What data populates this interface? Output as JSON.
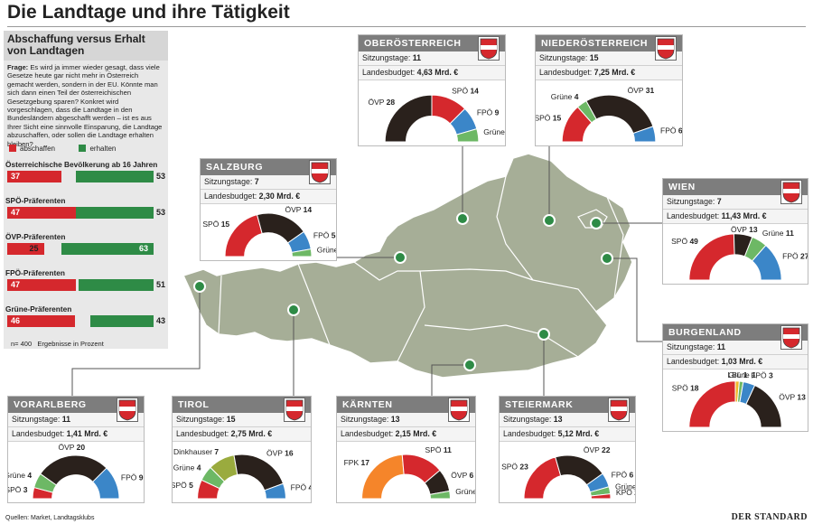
{
  "title": "Die Landtage und ihre Tätigkeit",
  "colors": {
    "SPÖ": "#d5282d",
    "ÖVP": "#2a211c",
    "FPÖ": "#3b86c8",
    "Grüne": "#6db865",
    "FPK": "#f5852a",
    "KPÖ": "#d5282d",
    "LBL": "#f0b82a",
    "Liste Dinkhauser": "#9aab3e",
    "abschaffen": "#d5282d",
    "erhalten": "#2e8b46",
    "map": "#a6ae97"
  },
  "survey": {
    "title": "Abschaffung versus Erhalt von Landtagen",
    "question_label": "Frage:",
    "question": "Es wird ja immer wieder gesagt, dass viele Gesetze heute gar nicht mehr in Österreich gemacht werden, sondern in der EU. Könnte man sich dann einen Teil der österreichischen Gesetzgebung sparen? Konkret wird vorgeschlagen, dass die Landtage in den Bundesländern abgeschafft werden – ist es aus Ihrer Sicht eine sinnvolle Einsparung, die Landtage abzuschaffen, oder sollen die Landtage erhalten bleiben?",
    "legend_abschaffen": "abschaffen",
    "legend_erhalten": "erhalten",
    "footer_n": "n= 400",
    "footer_note": "Ergebnisse in Prozent"
  },
  "chart_data": [
    {
      "type": "bar",
      "title": "Abschaffung versus Erhalt von Landtagen",
      "categories": [
        "Österreichische Bevölkerung ab 16 Jahren",
        "SPÖ-Präferenten",
        "ÖVP-Präferenten",
        "FPÖ-Präferenten",
        "Grüne-Präferenten"
      ],
      "series": [
        {
          "name": "abschaffen",
          "values": [
            37,
            47,
            25,
            47,
            46
          ]
        },
        {
          "name": "erhalten",
          "values": [
            53,
            53,
            63,
            51,
            43
          ]
        }
      ],
      "xlim": [
        0,
        100
      ]
    },
    {
      "type": "pie",
      "title": "OBERÖSTERREICH",
      "slices": [
        {
          "party": "ÖVP",
          "value": 28
        },
        {
          "party": "SPÖ",
          "value": 14
        },
        {
          "party": "FPÖ",
          "value": 9
        },
        {
          "party": "Grüne",
          "value": 5
        }
      ]
    },
    {
      "type": "pie",
      "title": "NIEDERÖSTERREICH",
      "slices": [
        {
          "party": "SPÖ",
          "value": 15
        },
        {
          "party": "Grüne",
          "value": 4
        },
        {
          "party": "ÖVP",
          "value": 31
        },
        {
          "party": "FPÖ",
          "value": 6
        }
      ]
    },
    {
      "type": "pie",
      "title": "SALZBURG",
      "slices": [
        {
          "party": "SPÖ",
          "value": 15
        },
        {
          "party": "ÖVP",
          "value": 14
        },
        {
          "party": "FPÖ",
          "value": 5
        },
        {
          "party": "Grüne",
          "value": 2
        }
      ]
    },
    {
      "type": "pie",
      "title": "WIEN",
      "slices": [
        {
          "party": "SPÖ",
          "value": 49
        },
        {
          "party": "ÖVP",
          "value": 13
        },
        {
          "party": "Grüne",
          "value": 11
        },
        {
          "party": "FPÖ",
          "value": 27
        }
      ]
    },
    {
      "type": "pie",
      "title": "BURGENLAND",
      "slices": [
        {
          "party": "SPÖ",
          "value": 18
        },
        {
          "party": "LBL",
          "value": 1
        },
        {
          "party": "Grüne",
          "value": 1
        },
        {
          "party": "FPÖ",
          "value": 3
        },
        {
          "party": "ÖVP",
          "value": 13
        }
      ]
    },
    {
      "type": "pie",
      "title": "VORARLBERG",
      "slices": [
        {
          "party": "SPÖ",
          "value": 3
        },
        {
          "party": "Grüne",
          "value": 4
        },
        {
          "party": "ÖVP",
          "value": 20
        },
        {
          "party": "FPÖ",
          "value": 9
        }
      ]
    },
    {
      "type": "pie",
      "title": "TIROL",
      "slices": [
        {
          "party": "SPÖ",
          "value": 5
        },
        {
          "party": "Grüne",
          "value": 4
        },
        {
          "party": "Liste Dinkhauser",
          "value": 7
        },
        {
          "party": "ÖVP",
          "value": 16
        },
        {
          "party": "FPÖ",
          "value": 4
        }
      ]
    },
    {
      "type": "pie",
      "title": "KÄRNTEN",
      "slices": [
        {
          "party": "FPK",
          "value": 17
        },
        {
          "party": "SPÖ",
          "value": 11
        },
        {
          "party": "ÖVP",
          "value": 6
        },
        {
          "party": "Grüne",
          "value": 2
        }
      ]
    },
    {
      "type": "pie",
      "title": "STEIERMARK",
      "slices": [
        {
          "party": "SPÖ",
          "value": 23
        },
        {
          "party": "ÖVP",
          "value": 22
        },
        {
          "party": "FPÖ",
          "value": 6
        },
        {
          "party": "Grüne",
          "value": 3
        },
        {
          "party": "KPÖ",
          "value": 2
        }
      ]
    }
  ],
  "states": [
    {
      "id": "ooe",
      "name": "OBERÖSTERREICH",
      "sitzungstage_label": "Sitzungstage:",
      "sitzungstage": "11",
      "budget_label": "Landesbudget:",
      "budget": "4,63 Mrd. €",
      "chart": 1
    },
    {
      "id": "noe",
      "name": "NIEDERÖSTERREICH",
      "sitzungstage_label": "Sitzungstage:",
      "sitzungstage": "15",
      "budget_label": "Landesbudget:",
      "budget": "7,25 Mrd. €",
      "chart": 2
    },
    {
      "id": "sbg",
      "name": "SALZBURG",
      "sitzungstage_label": "Sitzungstage:",
      "sitzungstage": "7",
      "budget_label": "Landesbudget:",
      "budget": "2,30 Mrd. €",
      "chart": 3
    },
    {
      "id": "wien",
      "name": "WIEN",
      "sitzungstage_label": "Sitzungstage:",
      "sitzungstage": "7",
      "budget_label": "Landesbudget:",
      "budget": "11,43 Mrd. €",
      "chart": 4
    },
    {
      "id": "bgld",
      "name": "BURGENLAND",
      "sitzungstage_label": "Sitzungstage:",
      "sitzungstage": "11",
      "budget_label": "Landesbudget:",
      "budget": "1,03 Mrd. €",
      "chart": 5
    },
    {
      "id": "vbg",
      "name": "VORARLBERG",
      "sitzungstage_label": "Sitzungstage:",
      "sitzungstage": "11",
      "budget_label": "Landesbudget:",
      "budget": "1,41 Mrd. €",
      "chart": 6
    },
    {
      "id": "tirol",
      "name": "TIROL",
      "sitzungstage_label": "Sitzungstage:",
      "sitzungstage": "15",
      "budget_label": "Landesbudget:",
      "budget": "2,75 Mrd. €",
      "chart": 7
    },
    {
      "id": "ktn",
      "name": "KÄRNTEN",
      "sitzungstage_label": "Sitzungstage:",
      "sitzungstage": "13",
      "budget_label": "Landesbudget:",
      "budget": "2,15 Mrd. €",
      "chart": 8
    },
    {
      "id": "stmk",
      "name": "STEIERMARK",
      "sitzungstage_label": "Sitzungstage:",
      "sitzungstage": "13",
      "budget_label": "Landesbudget:",
      "budget": "5,12 Mrd. €",
      "chart": 9
    }
  ],
  "footer": {
    "sources": "Quellen: Market, Landtagsklubs",
    "brand": "DER STANDARD"
  }
}
